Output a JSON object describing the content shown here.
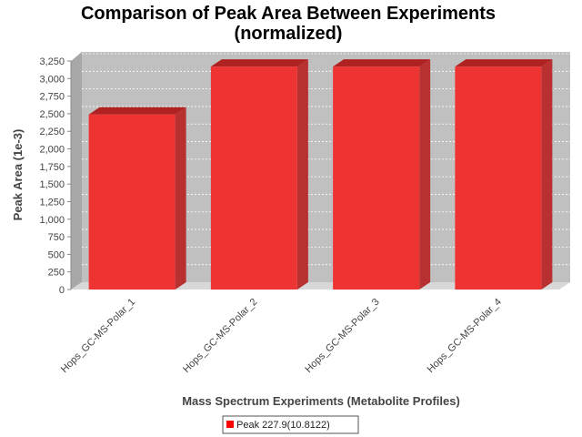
{
  "chart_data": {
    "type": "bar",
    "title_lines": [
      "Comparison of Peak Area Between Experiments",
      "(normalized)"
    ],
    "xlabel": "Mass Spectrum Experiments (Metabolite Profiles)",
    "ylabel": "Peak Area (1e-3)",
    "categories": [
      "Hops_GC-MS-Polar_1",
      "Hops_GC-MS-Polar_2",
      "Hops_GC-MS-Polar_3",
      "Hops_GC-MS-Polar_4"
    ],
    "series": [
      {
        "name": "Peak 227.9(10.8122)",
        "values": [
          2490,
          3170,
          3170,
          3170
        ]
      }
    ],
    "ylim": [
      0,
      3250
    ],
    "yticks": [
      0,
      250,
      500,
      750,
      1000,
      1250,
      1500,
      1750,
      2000,
      2250,
      2500,
      2750,
      3000,
      3250
    ],
    "ytick_labels": [
      "0",
      "250",
      "500",
      "750",
      "1,000",
      "1,250",
      "1,500",
      "1,750",
      "2,000",
      "2,250",
      "2,500",
      "2,750",
      "3,000",
      "3,250"
    ],
    "grid": true,
    "legend_position": "bottom-center",
    "colors": {
      "bar_front": "#ee3333",
      "bar_top": "#b02222",
      "bar_side": "#b83030",
      "plot_back": "#c0c0c0",
      "plot_floor": "#d8d8d8",
      "legend_swatch": "#ff0000"
    }
  }
}
